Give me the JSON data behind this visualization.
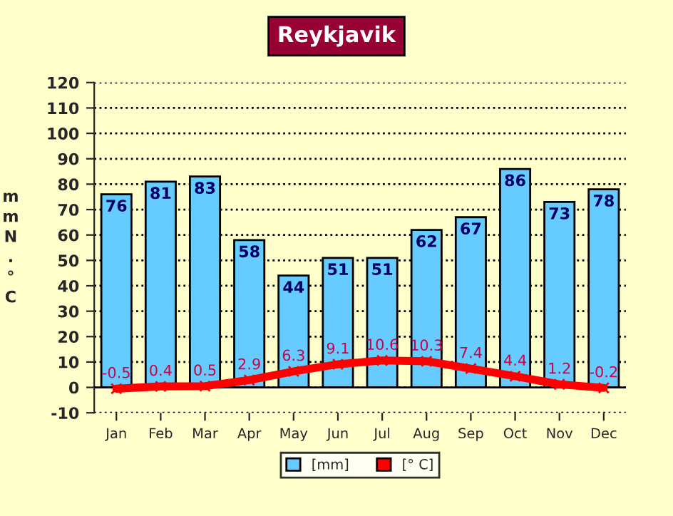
{
  "chart_data": {
    "type": "bar",
    "title": "Reykjavik",
    "ylabel": "mmN.°C",
    "categories": [
      "Jan",
      "Feb",
      "Mar",
      "Apr",
      "May",
      "Jun",
      "Jul",
      "Aug",
      "Sep",
      "Oct",
      "Nov",
      "Dec"
    ],
    "series": [
      {
        "name": "[mm]",
        "color": "#66ccff",
        "values": [
          76,
          81,
          83,
          58,
          44,
          51,
          51,
          62,
          67,
          86,
          73,
          78
        ]
      },
      {
        "name": "[° C]",
        "type": "line",
        "color": "#ff0000",
        "marker": "cross",
        "values": [
          -0.5,
          0.4,
          0.5,
          2.9,
          6.3,
          9.1,
          10.6,
          10.3,
          7.4,
          4.4,
          1.2,
          -0.2
        ]
      }
    ],
    "ylim": [
      -10,
      120
    ],
    "yticks": [
      -10,
      0,
      10,
      20,
      30,
      40,
      50,
      60,
      70,
      80,
      90,
      100,
      110,
      120
    ],
    "grid": "y",
    "legend": "bottom",
    "data_labels": true
  }
}
